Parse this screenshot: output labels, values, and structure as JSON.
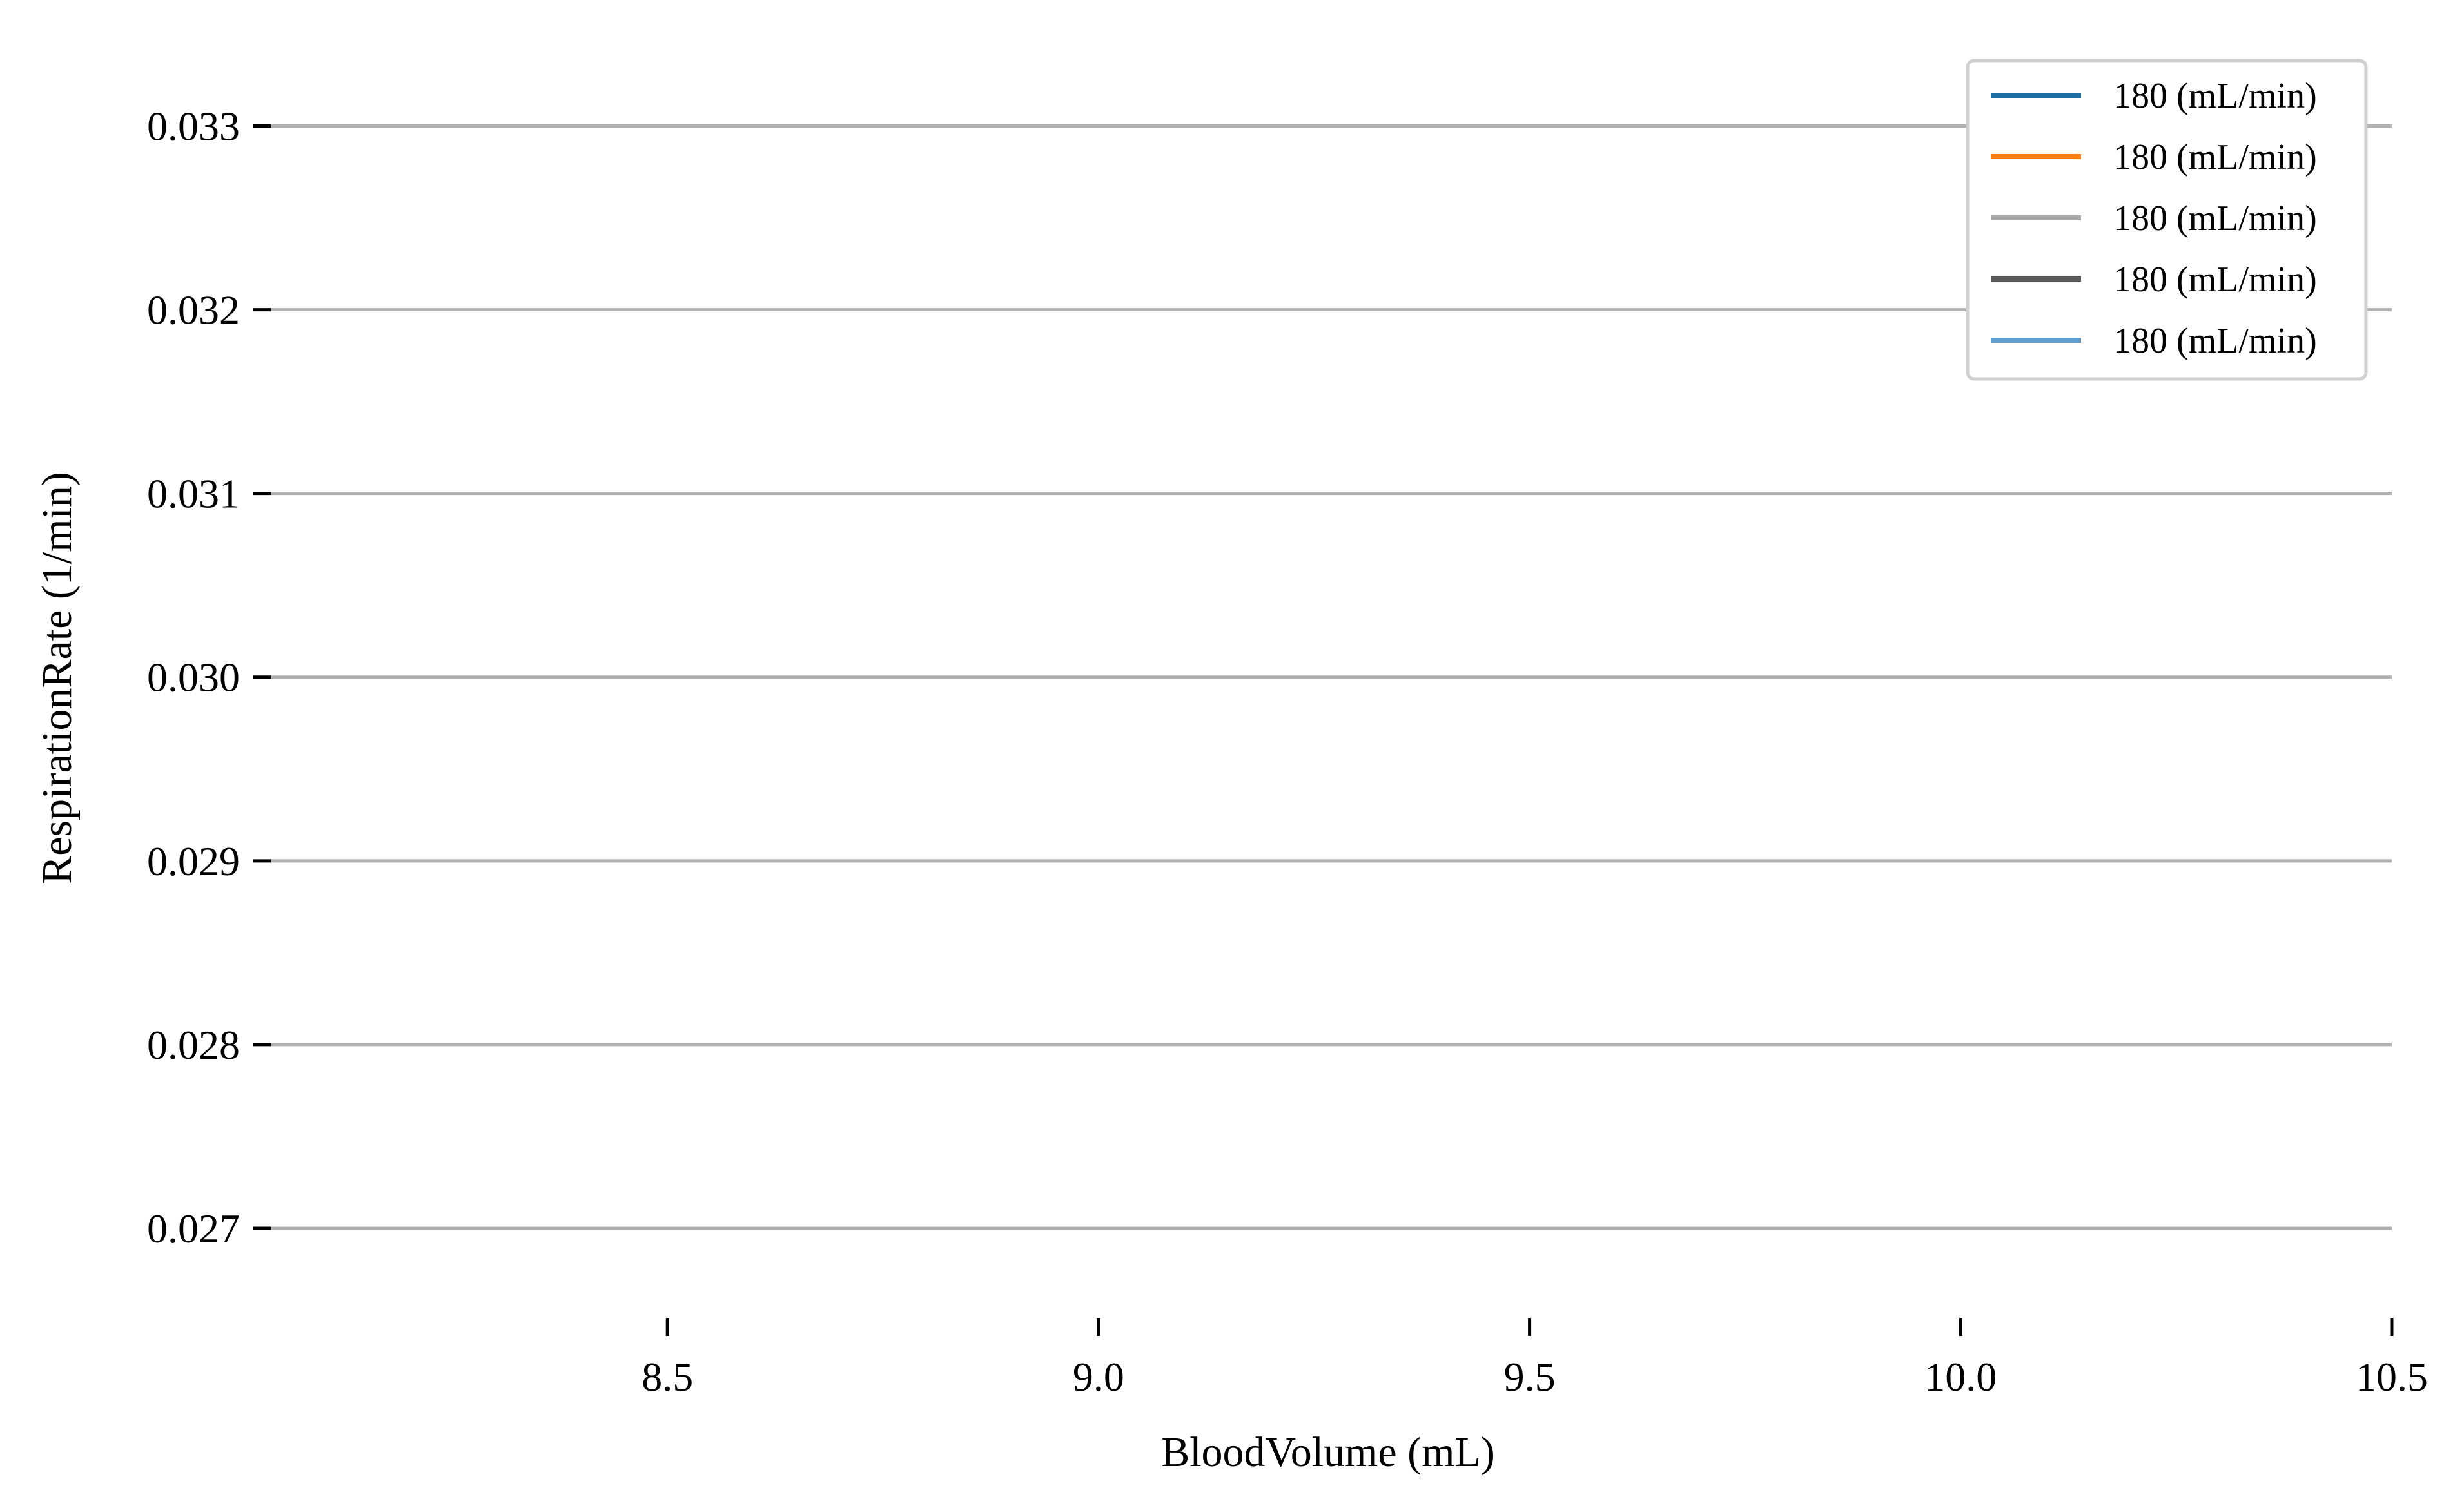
{
  "chart_data": {
    "type": "line",
    "title": "",
    "xlabel": "BloodVolume (mL)",
    "ylabel": "RespirationRate (1/min)",
    "xlim": [
      8.04,
      10.5
    ],
    "ylim": [
      0.0266,
      0.0333
    ],
    "x_ticks": [
      "8.5",
      "9.0",
      "9.5",
      "10.0",
      "10.5"
    ],
    "x_tick_values": [
      8.5,
      9.0,
      9.5,
      10.0,
      10.5
    ],
    "y_ticks": [
      "0.027",
      "0.028",
      "0.029",
      "0.030",
      "0.031",
      "0.032",
      "0.033"
    ],
    "y_tick_values": [
      0.027,
      0.028,
      0.029,
      0.03,
      0.031,
      0.032,
      0.033
    ],
    "grid": "horizontal",
    "legend_position": "top-right",
    "series": [
      {
        "name": "180 (mL/min)",
        "color": "#1f6fa5",
        "x": [],
        "y": []
      },
      {
        "name": "180 (mL/min)",
        "color": "#ff7f0e",
        "x": [],
        "y": []
      },
      {
        "name": "180 (mL/min)",
        "color": "#a9a9a9",
        "x": [],
        "y": []
      },
      {
        "name": "180 (mL/min)",
        "color": "#595959",
        "x": [],
        "y": []
      },
      {
        "name": "180 (mL/min)",
        "color": "#5f9ed1",
        "x": [],
        "y": []
      }
    ]
  }
}
